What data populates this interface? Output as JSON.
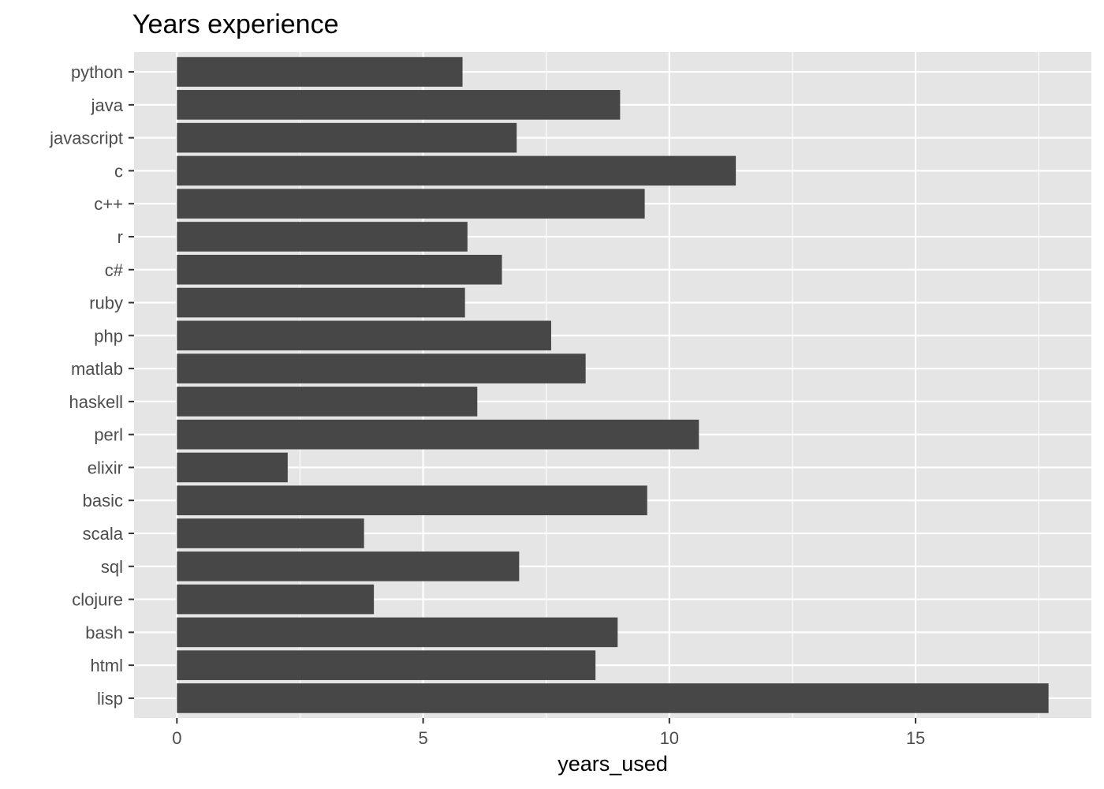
{
  "chart_data": {
    "type": "bar",
    "orientation": "horizontal",
    "title": "Years experience",
    "xlabel": "years_used",
    "ylabel": "",
    "categories": [
      "python",
      "java",
      "javascript",
      "c",
      "c++",
      "r",
      "c#",
      "ruby",
      "php",
      "matlab",
      "haskell",
      "perl",
      "elixir",
      "basic",
      "scala",
      "sql",
      "clojure",
      "bash",
      "html",
      "lisp"
    ],
    "values": [
      5.8,
      9.0,
      6.9,
      11.35,
      9.5,
      5.9,
      6.6,
      5.85,
      7.6,
      8.3,
      6.1,
      10.6,
      2.25,
      9.55,
      3.8,
      6.95,
      4.0,
      8.95,
      8.5,
      17.7
    ],
    "xlim": [
      -0.87,
      18.57
    ],
    "xticks": [
      0,
      5,
      10,
      15
    ],
    "xtick_labels": [
      "0",
      "5",
      "10",
      "15"
    ],
    "grid": true,
    "legend": "none",
    "colors": {
      "bar": "#474747",
      "panel": "#e5e5e5",
      "grid": "#ffffff",
      "tick_label": "#4d4d4d",
      "text": "#000000",
      "tick_mark": "#333333"
    }
  }
}
